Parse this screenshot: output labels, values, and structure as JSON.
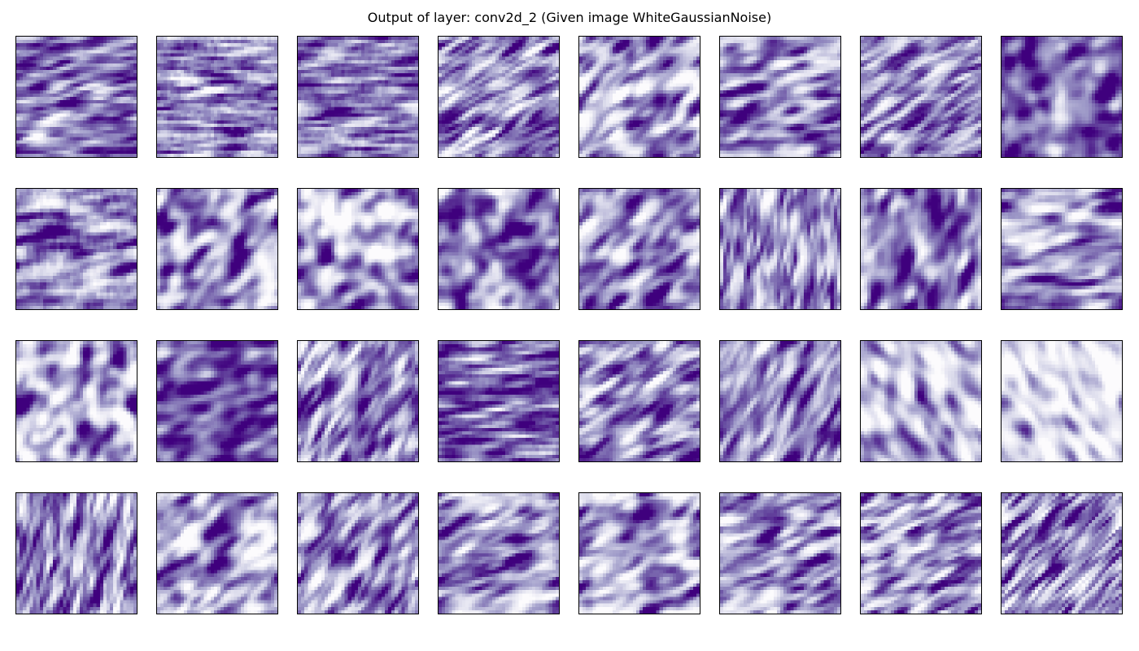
{
  "chart_data": {
    "type": "heatmap",
    "title": "Output of layer: conv2d_2 (Given image WhiteGaussianNoise)",
    "layout": {
      "rows": 4,
      "cols": 8
    },
    "resolution": 36,
    "colormap": {
      "name": "Purples",
      "low": "#fcfbfd",
      "high": "#3f007d"
    },
    "axes_ticks": false,
    "panels": [
      {
        "angle": 10,
        "freq": 0.9,
        "elong": 3,
        "mean": 0.62,
        "contrast": 0.22
      },
      {
        "angle": 2,
        "freq": 1.0,
        "elong": 6,
        "mean": 0.55,
        "contrast": 0.22
      },
      {
        "angle": 5,
        "freq": 1.0,
        "elong": 5,
        "mean": 0.6,
        "contrast": 0.2
      },
      {
        "angle": 30,
        "freq": 0.9,
        "elong": 3,
        "mean": 0.55,
        "contrast": 0.25
      },
      {
        "angle": 40,
        "freq": 0.6,
        "elong": 2.5,
        "mean": 0.45,
        "contrast": 0.28
      },
      {
        "angle": 12,
        "freq": 0.6,
        "elong": 3,
        "mean": 0.55,
        "contrast": 0.25
      },
      {
        "angle": 30,
        "freq": 0.9,
        "elong": 3,
        "mean": 0.55,
        "contrast": 0.22
      },
      {
        "angle": 30,
        "freq": 0.4,
        "elong": 2,
        "mean": 0.68,
        "contrast": 0.22
      },
      {
        "angle": 8,
        "freq": 0.6,
        "elong": 5,
        "mean": 0.55,
        "contrast": 0.25
      },
      {
        "angle": 45,
        "freq": 0.45,
        "elong": 2.5,
        "mean": 0.5,
        "contrast": 0.28
      },
      {
        "angle": 45,
        "freq": 0.4,
        "elong": 2,
        "mean": 0.42,
        "contrast": 0.3
      },
      {
        "angle": 45,
        "freq": 0.4,
        "elong": 2,
        "mean": 0.62,
        "contrast": 0.25
      },
      {
        "angle": 40,
        "freq": 0.55,
        "elong": 2.5,
        "mean": 0.55,
        "contrast": 0.25
      },
      {
        "angle": 80,
        "freq": 0.9,
        "elong": 3,
        "mean": 0.52,
        "contrast": 0.22
      },
      {
        "angle": 70,
        "freq": 0.5,
        "elong": 2.5,
        "mean": 0.6,
        "contrast": 0.25
      },
      {
        "angle": 10,
        "freq": 0.6,
        "elong": 3,
        "mean": 0.5,
        "contrast": 0.25
      },
      {
        "angle": 60,
        "freq": 0.45,
        "elong": 2,
        "mean": 0.42,
        "contrast": 0.3
      },
      {
        "angle": 15,
        "freq": 0.5,
        "elong": 2.5,
        "mean": 0.75,
        "contrast": 0.2
      },
      {
        "angle": 60,
        "freq": 0.8,
        "elong": 3,
        "mean": 0.55,
        "contrast": 0.25
      },
      {
        "angle": 5,
        "freq": 1.0,
        "elong": 4,
        "mean": 0.7,
        "contrast": 0.22
      },
      {
        "angle": 30,
        "freq": 0.7,
        "elong": 3,
        "mean": 0.55,
        "contrast": 0.25
      },
      {
        "angle": 60,
        "freq": 0.7,
        "elong": 3,
        "mean": 0.55,
        "contrast": 0.22
      },
      {
        "angle": 30,
        "freq": 0.25,
        "elong": 1.5,
        "mean": 0.35,
        "contrast": 0.25
      },
      {
        "angle": 30,
        "freq": 0.25,
        "elong": 1.5,
        "mean": 0.18,
        "contrast": 0.2
      },
      {
        "angle": 75,
        "freq": 1.0,
        "elong": 3,
        "mean": 0.55,
        "contrast": 0.25
      },
      {
        "angle": 40,
        "freq": 0.55,
        "elong": 2.5,
        "mean": 0.45,
        "contrast": 0.28
      },
      {
        "angle": 55,
        "freq": 0.7,
        "elong": 3,
        "mean": 0.52,
        "contrast": 0.25
      },
      {
        "angle": 20,
        "freq": 0.7,
        "elong": 3,
        "mean": 0.5,
        "contrast": 0.25
      },
      {
        "angle": 25,
        "freq": 0.55,
        "elong": 2.5,
        "mean": 0.45,
        "contrast": 0.28
      },
      {
        "angle": 20,
        "freq": 0.7,
        "elong": 3,
        "mean": 0.52,
        "contrast": 0.25
      },
      {
        "angle": 25,
        "freq": 0.8,
        "elong": 3,
        "mean": 0.5,
        "contrast": 0.25
      },
      {
        "angle": 45,
        "freq": 1.1,
        "elong": 3,
        "mean": 0.55,
        "contrast": 0.25
      }
    ]
  }
}
